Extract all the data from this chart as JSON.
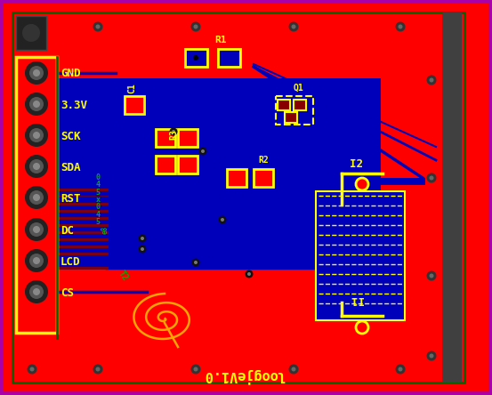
{
  "bg_color": "#FF0000",
  "border_outer_color": "#AA00AA",
  "border_inner_color": "#006600",
  "blue_region_color": "#0000BB",
  "dark_strip_color": "#404040",
  "yellow": "#FFFF00",
  "orange": "#FFA500",
  "dark_red": "#880000",
  "green_text": "#00AA00",
  "dark_blue_trace": "#00008B",
  "figsize": [
    5.53,
    4.44
  ],
  "dpi": 100,
  "pin_labels": [
    "GND",
    "3.3V",
    "SCK",
    "SDA",
    "RST",
    "DC",
    "LCD",
    "CS"
  ],
  "bottom_text": "loogjeV1.0"
}
